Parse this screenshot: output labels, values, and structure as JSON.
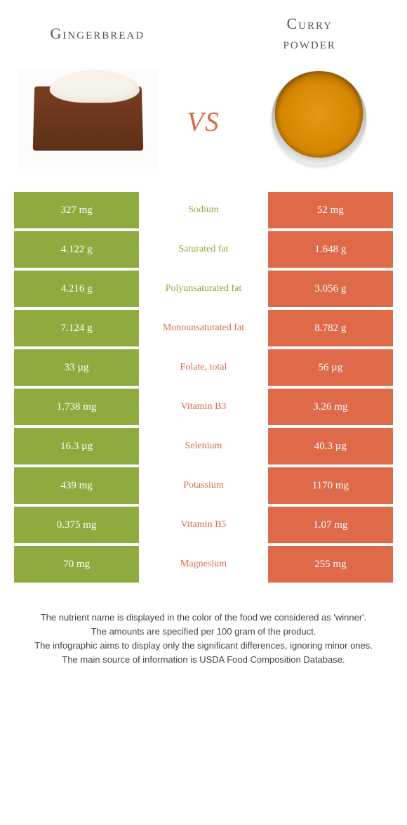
{
  "colors": {
    "left": "#8fab3f",
    "right": "#de6a4a",
    "left_text_in_mid": "#8fab3f",
    "right_text_in_mid": "#de6a4a",
    "background": "#ffffff",
    "vs": "#d86b4b",
    "title": "#555555",
    "footnote": "#444444"
  },
  "fonts": {
    "title_size_pt": 17,
    "row_size_pt": 11,
    "vs_size_pt": 42,
    "footnote_size_pt": 10
  },
  "header": {
    "left_title": "Gingerbread",
    "right_title_line1": "Curry",
    "right_title_line2": "powder",
    "vs_label": "vs"
  },
  "rows": [
    {
      "left": "327 mg",
      "label": "Sodium",
      "right": "52 mg",
      "winner": "left"
    },
    {
      "left": "4.122 g",
      "label": "Saturated fat",
      "right": "1.648 g",
      "winner": "left"
    },
    {
      "left": "4.216 g",
      "label": "Polyunsaturated fat",
      "right": "3.056 g",
      "winner": "left"
    },
    {
      "left": "7.124 g",
      "label": "Monounsaturated fat",
      "right": "8.782 g",
      "winner": "right"
    },
    {
      "left": "33 µg",
      "label": "Folate, total",
      "right": "56 µg",
      "winner": "right"
    },
    {
      "left": "1.738 mg",
      "label": "Vitamin B3",
      "right": "3.26 mg",
      "winner": "right"
    },
    {
      "left": "16.3 µg",
      "label": "Selenium",
      "right": "40.3 µg",
      "winner": "right"
    },
    {
      "left": "439 mg",
      "label": "Potassium",
      "right": "1170 mg",
      "winner": "right"
    },
    {
      "left": "0.375 mg",
      "label": "Vitamin B5",
      "right": "1.07 mg",
      "winner": "right"
    },
    {
      "left": "70 mg",
      "label": "Magnesium",
      "right": "255 mg",
      "winner": "right"
    }
  ],
  "footnotes": [
    "The nutrient name is displayed in the color of the food we considered as 'winner'.",
    "The amounts are specified per 100 gram of the product.",
    "The infographic aims to display only the significant differences, ignoring minor ones.",
    "The main source of information is USDA Food Composition Database."
  ]
}
